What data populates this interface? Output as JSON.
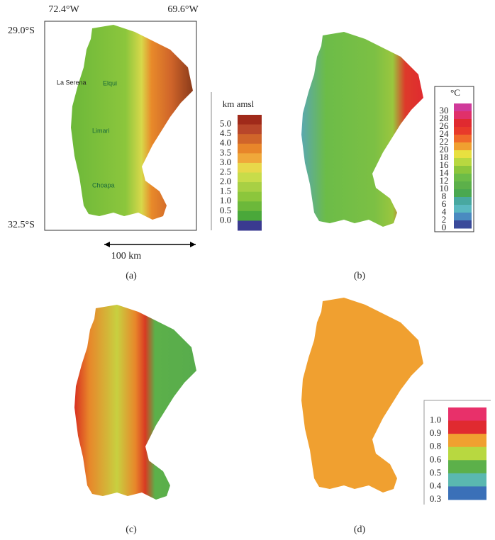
{
  "coordinates": {
    "west": "72.4°W",
    "east": "69.6°W",
    "north": "29.0°S",
    "south": "32.5°S"
  },
  "places": [
    "La Serena",
    "Elqui",
    "Limari",
    "Choapa"
  ],
  "scale": "100 km",
  "panels": [
    "(a)",
    "(b)",
    "(c)",
    "(d)"
  ],
  "legend_a": {
    "title": "km amsl",
    "labels": [
      "5.0",
      "4.5",
      "4.0",
      "3.5",
      "3.0",
      "2.5",
      "2.0",
      "1.5",
      "1.0",
      "0.5",
      "0.0"
    ]
  },
  "legend_b": {
    "title": "°C",
    "labels": [
      "30",
      "28",
      "26",
      "24",
      "22",
      "20",
      "18",
      "16",
      "14",
      "12",
      "10",
      "8",
      "6",
      "4",
      "2",
      "0"
    ]
  },
  "legend_d": {
    "labels": [
      "1.0",
      "0.9",
      "0.8",
      "0.6",
      "0.5",
      "0.4",
      "0.3"
    ]
  }
}
